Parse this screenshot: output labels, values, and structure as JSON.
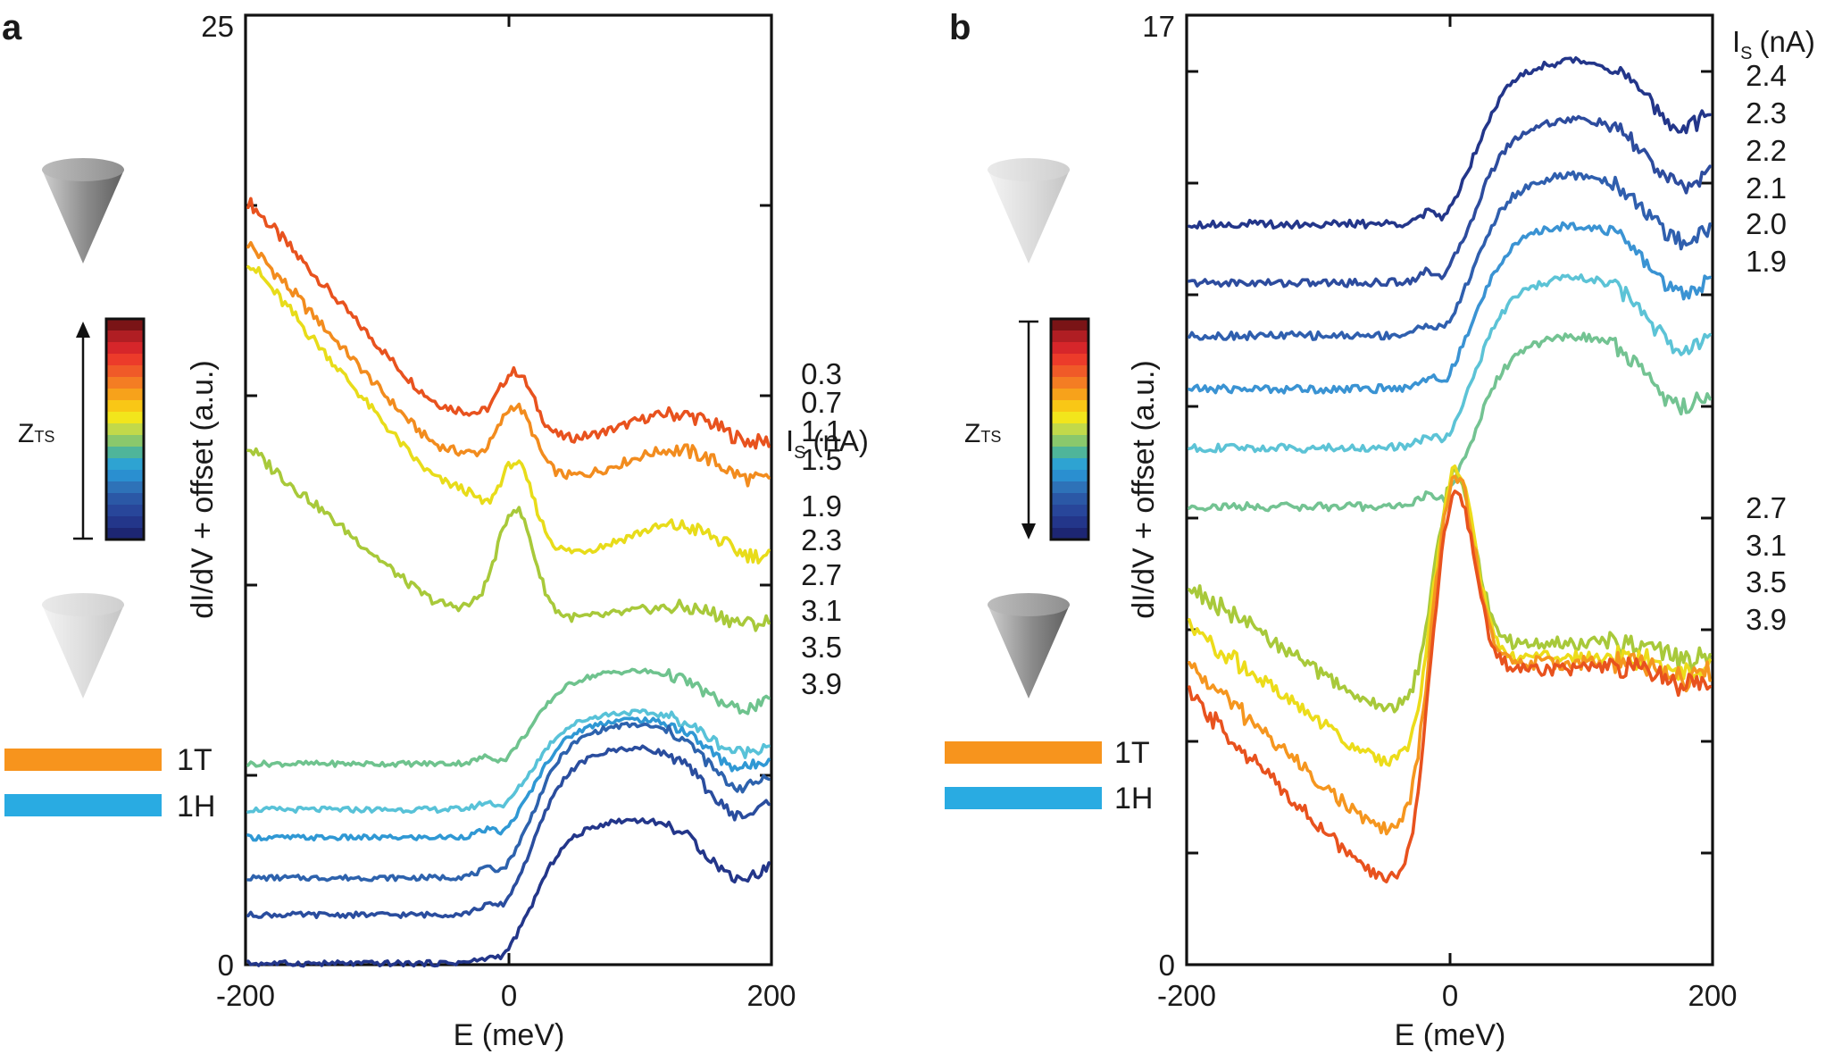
{
  "chart_data": [
    {
      "panel": "a",
      "type": "line",
      "xlabel": "E (meV)",
      "ylabel": "dI/dV + offset (a.u.)",
      "xlim": [
        -200,
        200
      ],
      "ylim": [
        0,
        25
      ],
      "xticks": [
        "-200",
        "0",
        "200"
      ],
      "ytick_labels": {
        "top": "25",
        "bottom": "0"
      },
      "is_header": "I",
      "is_sub": "S",
      "is_unit": "(nA)",
      "legend": [
        {
          "label": "1T",
          "color": "#f7941d"
        },
        {
          "label": "1H",
          "color": "#29abe2"
        }
      ],
      "z_label": "Z",
      "z_sub": "TS",
      "z_arrow": "up",
      "series": [
        {
          "name": "0.3",
          "color": "#e8521e",
          "kind": "1T",
          "base": 14.8,
          "r": 14.6,
          "slope": 0.0385,
          "pk": 1.8,
          "hump": 0.7,
          "dip": 0.2
        },
        {
          "name": "0.7",
          "color": "#f28c1e",
          "kind": "1T",
          "base": 13.8,
          "r": 13.5,
          "slope": 0.0385,
          "pk": 1.9,
          "hump": 0.75,
          "dip": 0.2
        },
        {
          "name": "1.1",
          "color": "#e8dc1a",
          "kind": "1T",
          "base": 11.8,
          "r": 12.6,
          "slope": 0.0415,
          "pk": 2.4,
          "hump": 0.75,
          "dip": 0.2
        },
        {
          "name": "1.5",
          "color": "#a8c93a",
          "kind": "1T",
          "base": 10.1,
          "r": 9.4,
          "slope": 0.0295,
          "pk": 2.9,
          "hump": 0.3,
          "dip": 0.2
        },
        {
          "name": "1.9",
          "color": "#6fc38e",
          "kind": "1H",
          "base": 5.45,
          "amp": 2.0,
          "pre": 0.1
        },
        {
          "name": "2.3",
          "color": "#58c2d8",
          "kind": "1H",
          "base": 4.25,
          "amp": 2.1,
          "pre": 0.1
        },
        {
          "name": "2.7",
          "color": "#2f98d4",
          "kind": "1H",
          "base": 3.55,
          "amp": 2.55,
          "pre": 0.1
        },
        {
          "name": "3.1",
          "color": "#2d62ad",
          "kind": "1H",
          "base": 2.55,
          "amp": 3.3,
          "pre": 0.1
        },
        {
          "name": "3.5",
          "color": "#2a4d9e",
          "kind": "1H",
          "base": 1.6,
          "amp": 3.6,
          "pre": 0.1
        },
        {
          "name": "3.9",
          "color": "#23368a",
          "kind": "1H",
          "base": 0.28,
          "amp": 3.1,
          "pre": 0.0
        }
      ]
    },
    {
      "panel": "b",
      "type": "line",
      "xlabel": "E (meV)",
      "ylabel": "dI/dV + offset (a.u.)",
      "xlim": [
        -200,
        200
      ],
      "ylim": [
        0,
        17
      ],
      "xticks": [
        "-200",
        "0",
        "200"
      ],
      "ytick_labels": {
        "top": "17",
        "bottom": "0"
      },
      "is_header": "I",
      "is_sub": "S",
      "is_unit": "(nA)",
      "legend": [
        {
          "label": "1T",
          "color": "#f7941d"
        },
        {
          "label": "1H",
          "color": "#29abe2"
        }
      ],
      "z_label": "Z",
      "z_sub": "TS",
      "z_arrow": "down",
      "series": [
        {
          "name": "2.4",
          "color": "#23368a",
          "kind": "1H",
          "base": 13.45,
          "amp": 2.4,
          "pre": 0.1
        },
        {
          "name": "2.3",
          "color": "#2d4c9e",
          "kind": "1H",
          "base": 12.4,
          "amp": 2.4,
          "pre": 0.1
        },
        {
          "name": "2.2",
          "color": "#2f5fae",
          "kind": "1H",
          "base": 11.45,
          "amp": 2.35,
          "pre": 0.1
        },
        {
          "name": "2.1",
          "color": "#3a93d3",
          "kind": "1H",
          "base": 10.5,
          "amp": 2.4,
          "pre": 0.1
        },
        {
          "name": "2.0",
          "color": "#5cc3d6",
          "kind": "1H",
          "base": 9.45,
          "amp": 2.5,
          "pre": 0.1
        },
        {
          "name": "1.9",
          "color": "#73c392",
          "kind": "1H",
          "base": 8.4,
          "amp": 2.5,
          "pre": 0.1
        },
        {
          "name": "2.7",
          "color": "#a8c93a",
          "kind": "1T",
          "base": 6.75,
          "r": 4.55,
          "slope": 0.0155,
          "pk": 3.1,
          "hump": 0.0,
          "dip": 0.3
        },
        {
          "name": "3.1",
          "color": "#ecdc1a",
          "kind": "1T",
          "base": 6.5,
          "r": 3.6,
          "slope": 0.017,
          "pk": 3.4,
          "hump": 0.0,
          "dip": 0.3
        },
        {
          "name": "3.5",
          "color": "#f5961f",
          "kind": "1T",
          "base": 6.4,
          "r": 2.35,
          "slope": 0.021,
          "pk": 3.4,
          "hump": 0.0,
          "dip": 0.3
        },
        {
          "name": "3.9",
          "color": "#e8521e",
          "kind": "1T",
          "base": 6.3,
          "r": 1.45,
          "slope": 0.0235,
          "pk": 3.2,
          "hump": 0.0,
          "dip": 0.3
        }
      ]
    }
  ]
}
